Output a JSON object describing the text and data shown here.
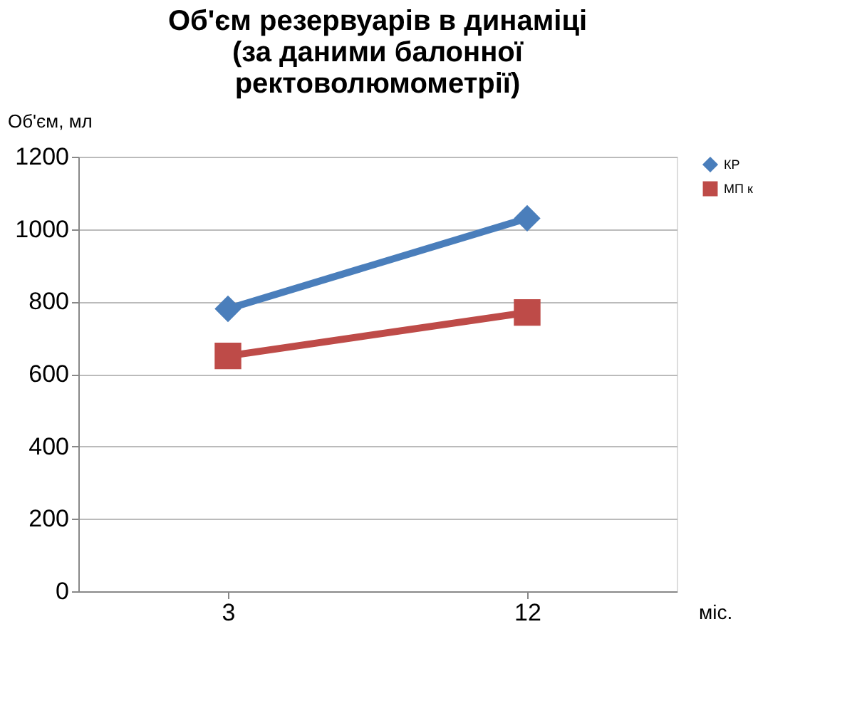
{
  "chart_data": {
    "type": "line",
    "title": [
      "Об'єм резервуарів в динаміці",
      "(за даними балонної",
      "ректоволюмометрії)"
    ],
    "xlabel": "міс.",
    "ylabel": "Об'єм, мл",
    "categories": [
      "3",
      "12"
    ],
    "series": [
      {
        "name": "КР",
        "color": "#4a7ebb",
        "marker": "diamond",
        "values": [
          780,
          1030
        ]
      },
      {
        "name": "МП к",
        "color": "#be4b48",
        "marker": "square",
        "values": [
          650,
          770
        ]
      }
    ],
    "ylim": [
      0,
      1200
    ],
    "yticks": [
      0,
      200,
      400,
      600,
      800,
      1000,
      1200
    ],
    "grid": "y",
    "legend": "right",
    "line_style": "solid"
  }
}
